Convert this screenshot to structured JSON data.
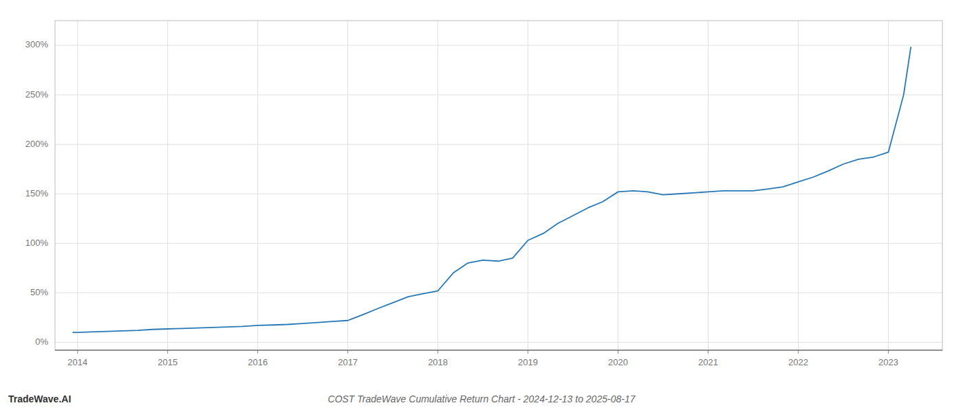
{
  "chart_data": {
    "type": "line",
    "title": "COST TradeWave Cumulative Return Chart - 2024-12-13 to 2025-08-17",
    "annotations": [
      "TradeWave.AI"
    ],
    "color": "#2878b8",
    "grid": true,
    "x": [
      2013.95,
      2014.0,
      2014.15,
      2014.33,
      2014.5,
      2014.67,
      2014.83,
      2015.0,
      2015.17,
      2015.33,
      2015.5,
      2015.67,
      2015.83,
      2016.0,
      2016.17,
      2016.33,
      2016.5,
      2016.67,
      2016.83,
      2017.0,
      2017.17,
      2017.33,
      2017.5,
      2017.67,
      2017.83,
      2018.0,
      2018.17,
      2018.33,
      2018.5,
      2018.67,
      2018.83,
      2019.0,
      2019.17,
      2019.33,
      2019.5,
      2019.67,
      2019.83,
      2020.0,
      2020.17,
      2020.33,
      2020.5,
      2020.67,
      2020.83,
      2021.0,
      2021.17,
      2021.33,
      2021.5,
      2021.67,
      2021.83,
      2022.0,
      2022.17,
      2022.33,
      2022.5,
      2022.67,
      2022.83,
      2023.0,
      2023.17,
      2023.25
    ],
    "values": [
      10,
      10,
      10.5,
      11,
      11.5,
      12,
      13,
      13.5,
      14,
      14.5,
      15,
      15.5,
      16,
      17,
      17.5,
      18,
      19,
      20,
      21,
      22,
      28,
      34,
      40,
      46,
      49,
      52,
      70,
      80,
      83,
      82,
      85,
      103,
      110,
      120,
      128,
      136,
      142,
      152,
      153,
      152,
      149,
      150,
      151,
      152,
      153,
      153,
      153,
      155,
      157,
      162,
      167,
      173,
      180,
      185,
      187,
      192,
      250,
      298
    ],
    "xlim": [
      2013.75,
      2023.6
    ],
    "xticks": [
      2014,
      2015,
      2016,
      2017,
      2018,
      2019,
      2020,
      2021,
      2022,
      2023
    ],
    "ylim": [
      -8,
      325
    ],
    "yticks": [
      {
        "value": 0,
        "label": "0%"
      },
      {
        "value": 50,
        "label": "50%"
      },
      {
        "value": 100,
        "label": "100%"
      },
      {
        "value": 150,
        "label": "150%"
      },
      {
        "value": 200,
        "label": "200%"
      },
      {
        "value": 250,
        "label": "250%"
      },
      {
        "value": 300,
        "label": "300%"
      }
    ]
  }
}
